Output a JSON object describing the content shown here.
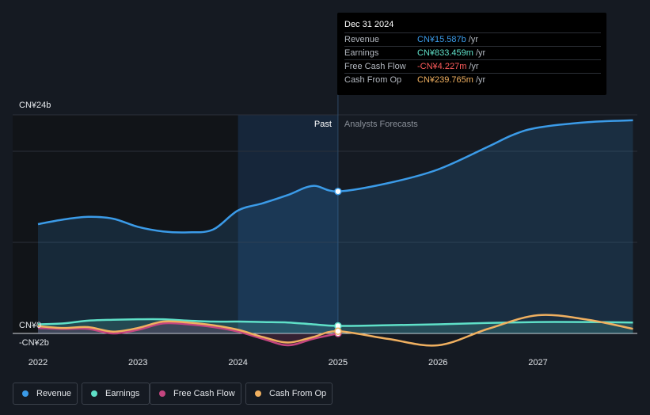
{
  "tooltip": {
    "date": "Dec 31 2024",
    "rows": [
      {
        "label": "Revenue",
        "value": "CN¥15.587b",
        "unit": "/yr",
        "color": "#3b9be8"
      },
      {
        "label": "Earnings",
        "value": "CN¥833.459m",
        "unit": "/yr",
        "color": "#5fe0c8"
      },
      {
        "label": "Free Cash Flow",
        "value": "-CN¥4.227m",
        "unit": "/yr",
        "color": "#ff5c5c"
      },
      {
        "label": "Cash From Op",
        "value": "CN¥239.765m",
        "unit": "/yr",
        "color": "#f0b060"
      }
    ]
  },
  "legend": [
    {
      "label": "Revenue",
      "color": "#3b9be8"
    },
    {
      "label": "Earnings",
      "color": "#5fe0c8"
    },
    {
      "label": "Free Cash Flow",
      "color": "#c4457f"
    },
    {
      "label": "Cash From Op",
      "color": "#f0b060"
    }
  ],
  "chart_data": {
    "type": "line",
    "y_axis_labels": [
      "CN¥24b",
      "CN¥0",
      "-CN¥2b"
    ],
    "x_tick_labels": [
      "2022",
      "2023",
      "2024",
      "2025",
      "2026",
      "2027"
    ],
    "region_labels": {
      "past": "Past",
      "forecast": "Analysts Forecasts"
    },
    "ylim": [
      -2,
      24
    ],
    "x_range": [
      2021.75,
      2027.95
    ],
    "past_shade_start": 2024.0,
    "divider_x": 2025.0,
    "series": [
      {
        "name": "Revenue",
        "color": "#3b9be8",
        "fill": true,
        "x": [
          2022.0,
          2022.25,
          2022.5,
          2022.75,
          2023.0,
          2023.25,
          2023.5,
          2023.75,
          2024.0,
          2024.25,
          2024.5,
          2024.75,
          2025.0,
          2025.5,
          2026.0,
          2026.5,
          2026.75,
          2027.0,
          2027.5,
          2027.95
        ],
        "y": [
          12.0,
          12.5,
          12.8,
          12.6,
          11.7,
          11.2,
          11.1,
          11.4,
          13.5,
          14.3,
          15.2,
          16.2,
          15.59,
          16.5,
          18.0,
          20.5,
          21.8,
          22.6,
          23.2,
          23.4
        ]
      },
      {
        "name": "Earnings",
        "color": "#5fe0c8",
        "fill": true,
        "x": [
          2022.0,
          2022.25,
          2022.5,
          2022.75,
          2023.0,
          2023.25,
          2023.5,
          2023.75,
          2024.0,
          2024.25,
          2024.5,
          2024.75,
          2025.0,
          2025.5,
          2026.0,
          2026.5,
          2027.0,
          2027.5,
          2027.95
        ],
        "y": [
          1.0,
          1.1,
          1.4,
          1.5,
          1.55,
          1.55,
          1.4,
          1.3,
          1.3,
          1.25,
          1.2,
          1.0,
          0.83,
          0.9,
          1.0,
          1.15,
          1.25,
          1.25,
          1.2
        ]
      },
      {
        "name": "Free Cash Flow",
        "color": "#c4457f",
        "fill": true,
        "x": [
          2022.0,
          2022.25,
          2022.5,
          2022.75,
          2023.0,
          2023.25,
          2023.5,
          2023.75,
          2024.0,
          2024.25,
          2024.5,
          2024.75,
          2025.0
        ],
        "y": [
          0.6,
          0.5,
          0.5,
          0.0,
          0.4,
          1.1,
          1.0,
          0.7,
          0.2,
          -0.6,
          -1.3,
          -0.6,
          -0.004
        ]
      },
      {
        "name": "Cash From Op",
        "color": "#f0b060",
        "fill": false,
        "x": [
          2022.0,
          2022.25,
          2022.5,
          2022.75,
          2023.0,
          2023.25,
          2023.5,
          2023.75,
          2024.0,
          2024.25,
          2024.5,
          2024.75,
          2025.0,
          2025.5,
          2026.0,
          2026.5,
          2027.0,
          2027.5,
          2027.95
        ],
        "y": [
          0.8,
          0.6,
          0.7,
          0.2,
          0.6,
          1.3,
          1.2,
          0.9,
          0.4,
          -0.4,
          -1.0,
          -0.4,
          0.24,
          -0.6,
          -1.3,
          0.5,
          2.0,
          1.5,
          0.5
        ]
      }
    ],
    "highlight_x": 2025.0
  }
}
